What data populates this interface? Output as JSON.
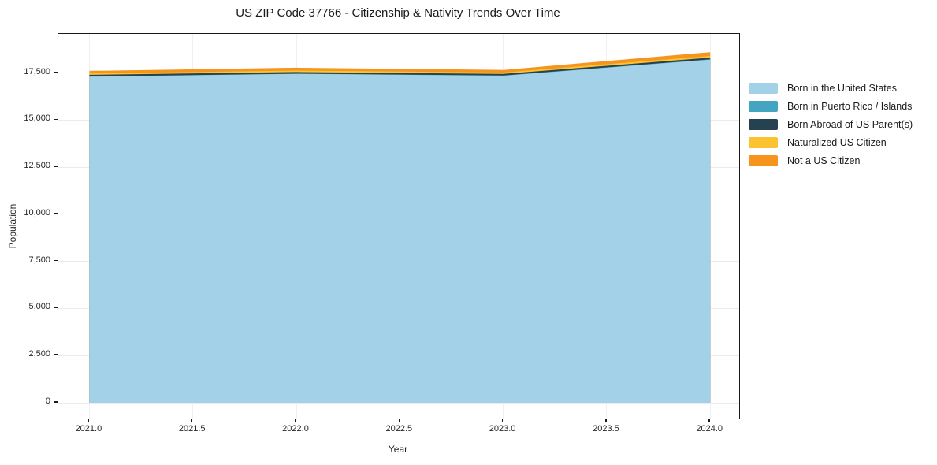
{
  "title": "US ZIP Code 37766 - Citizenship & Nativity Trends Over Time",
  "axes": {
    "x_label": "Year",
    "y_label": "Population",
    "x_tick_labels": [
      "2021.0",
      "2021.5",
      "2022.0",
      "2022.5",
      "2023.0",
      "2023.5",
      "2024.0"
    ],
    "y_tick_labels": [
      "0",
      "2,500",
      "5,000",
      "7,500",
      "10,000",
      "12,500",
      "15,000",
      "17,500"
    ]
  },
  "legend": {
    "items": [
      {
        "label": "Born in the United States",
        "color": "#a3d2e8"
      },
      {
        "label": "Born in Puerto Rico / Islands",
        "color": "#44a5c2"
      },
      {
        "label": "Born Abroad of US Parent(s)",
        "color": "#26414f"
      },
      {
        "label": "Naturalized US Citizen",
        "color": "#fcc330"
      },
      {
        "label": "Not a US Citizen",
        "color": "#f7941e"
      }
    ]
  },
  "chart_data": {
    "type": "area",
    "stacked": true,
    "title": "US ZIP Code 37766 - Citizenship & Nativity Trends Over Time",
    "xlabel": "Year",
    "ylabel": "Population",
    "x": [
      2021,
      2022,
      2023,
      2024
    ],
    "series": [
      {
        "name": "Born in the United States",
        "color": "#a3d2e8",
        "values": [
          17300,
          17450,
          17350,
          18200
        ]
      },
      {
        "name": "Born in Puerto Rico / Islands",
        "color": "#44a5c2",
        "values": [
          10,
          10,
          15,
          20
        ]
      },
      {
        "name": "Born Abroad of US Parent(s)",
        "color": "#26414f",
        "values": [
          90,
          85,
          80,
          90
        ]
      },
      {
        "name": "Naturalized US Citizen",
        "color": "#fcc330",
        "values": [
          70,
          80,
          75,
          90
        ]
      },
      {
        "name": "Not a US Citizen",
        "color": "#f7941e",
        "values": [
          140,
          150,
          140,
          200
        ]
      }
    ],
    "x_tick_values": [
      2021.0,
      2021.5,
      2022.0,
      2022.5,
      2023.0,
      2023.5,
      2024.0
    ],
    "y_tick_values": [
      0,
      2500,
      5000,
      7500,
      10000,
      12500,
      15000,
      17500
    ],
    "xlim": [
      2020.85,
      2024.14
    ],
    "ylim": [
      -836,
      19570
    ],
    "grid": true,
    "legend_position": "right-outside"
  }
}
